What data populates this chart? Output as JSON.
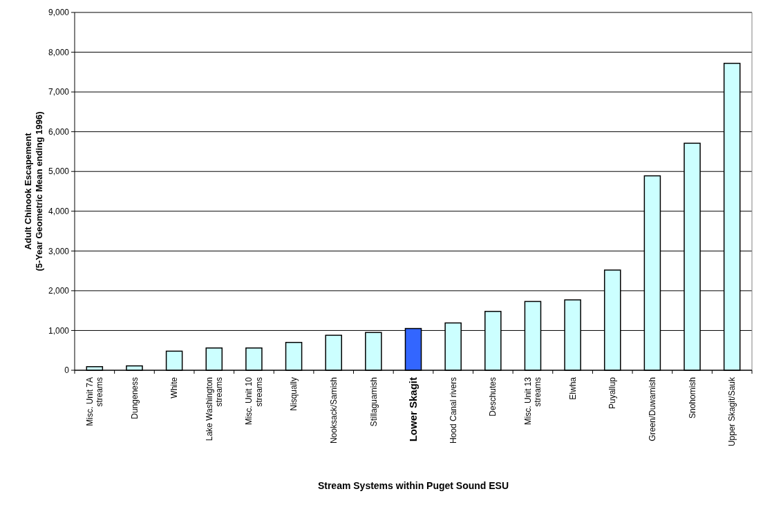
{
  "chart_data": {
    "type": "bar",
    "xlabel": "Stream Systems within Puget Sound ESU",
    "ylabel": "Adult Chinook Escapement\n(5-Year Geometric Mean ending 1996)",
    "categories": [
      "Misc.  Unit 7A streams",
      "Dungeness",
      "White",
      "Lake Washington streams",
      "Misc. Unit 10 streams",
      "Nisqually",
      "Nooksack/Samish",
      "Stillaguamish",
      "Lower Skagit",
      "Hood Canal rivers",
      "Deschutes",
      "Misc. Unit 13 streams",
      "Elwha",
      "Puyallup",
      "Green/Duwamish",
      "Snohomish",
      "Upper Skagit/Sauk"
    ],
    "values": [
      90,
      110,
      480,
      560,
      560,
      700,
      880,
      950,
      1050,
      1190,
      1480,
      1730,
      1770,
      2520,
      4890,
      5710,
      7720
    ],
    "colors": [
      "#ccffff",
      "#ccffff",
      "#ccffff",
      "#ccffff",
      "#ccffff",
      "#ccffff",
      "#ccffff",
      "#ccffff",
      "#3366ff",
      "#ccffff",
      "#ccffff",
      "#ccffff",
      "#ccffff",
      "#ccffff",
      "#ccffff",
      "#ccffff",
      "#ccffff"
    ],
    "ylim": [
      0,
      9000
    ],
    "yticks": [
      {
        "value": 0,
        "label": "0"
      },
      {
        "value": 1000,
        "label": "1,000"
      },
      {
        "value": 2000,
        "label": "2,000"
      },
      {
        "value": 3000,
        "label": "3,000"
      },
      {
        "value": 4000,
        "label": "4,000"
      },
      {
        "value": 5000,
        "label": "5,000"
      },
      {
        "value": 6000,
        "label": "6,000"
      },
      {
        "value": 7000,
        "label": "7,000"
      },
      {
        "value": 8000,
        "label": "8,000"
      },
      {
        "value": 9000,
        "label": "9,000"
      }
    ],
    "grid": "y"
  }
}
